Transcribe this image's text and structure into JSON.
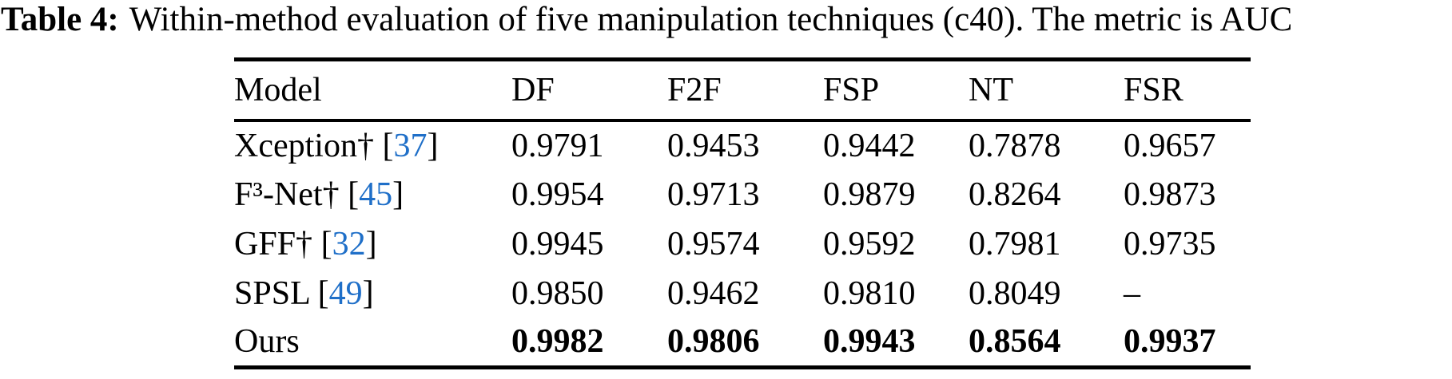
{
  "caption": {
    "label": "Table 4:",
    "text": "Within-method evaluation of five manipulation techniques (c40). The metric is AUC"
  },
  "colors": {
    "citation_blue": "#1F6FC8",
    "text": "#000000",
    "rule": "#000000",
    "background": "#ffffff"
  },
  "table": {
    "headers": [
      "Model",
      "DF",
      "F2F",
      "FSP",
      "NT",
      "FSR"
    ],
    "rows": [
      {
        "model": "Xception†",
        "cite": {
          "open": "[",
          "num": "37",
          "close": "]"
        },
        "values": [
          "0.9791",
          "0.9453",
          "0.9442",
          "0.7878",
          "0.9657"
        ],
        "emphasis": "none"
      },
      {
        "model": "F³-Net†",
        "cite": {
          "open": "[",
          "num": "45",
          "close": "]"
        },
        "values": [
          "0.9954",
          "0.9713",
          "0.9879",
          "0.8264",
          "0.9873"
        ],
        "emphasis": "none"
      },
      {
        "model": "GFF†",
        "cite": {
          "open": "[",
          "num": "32",
          "close": "]"
        },
        "values": [
          "0.9945",
          "0.9574",
          "0.9592",
          "0.7981",
          "0.9735"
        ],
        "emphasis": "none"
      },
      {
        "model": "SPSL",
        "cite": {
          "open": "[",
          "num": "49",
          "close": "]"
        },
        "values": [
          "0.9850",
          "0.9462",
          "0.9810",
          "0.8049",
          "–"
        ],
        "emphasis": "none"
      },
      {
        "model": "Ours",
        "values": [
          "0.9982",
          "0.9806",
          "0.9943",
          "0.8564",
          "0.9937"
        ],
        "emphasis": "bold"
      }
    ]
  }
}
